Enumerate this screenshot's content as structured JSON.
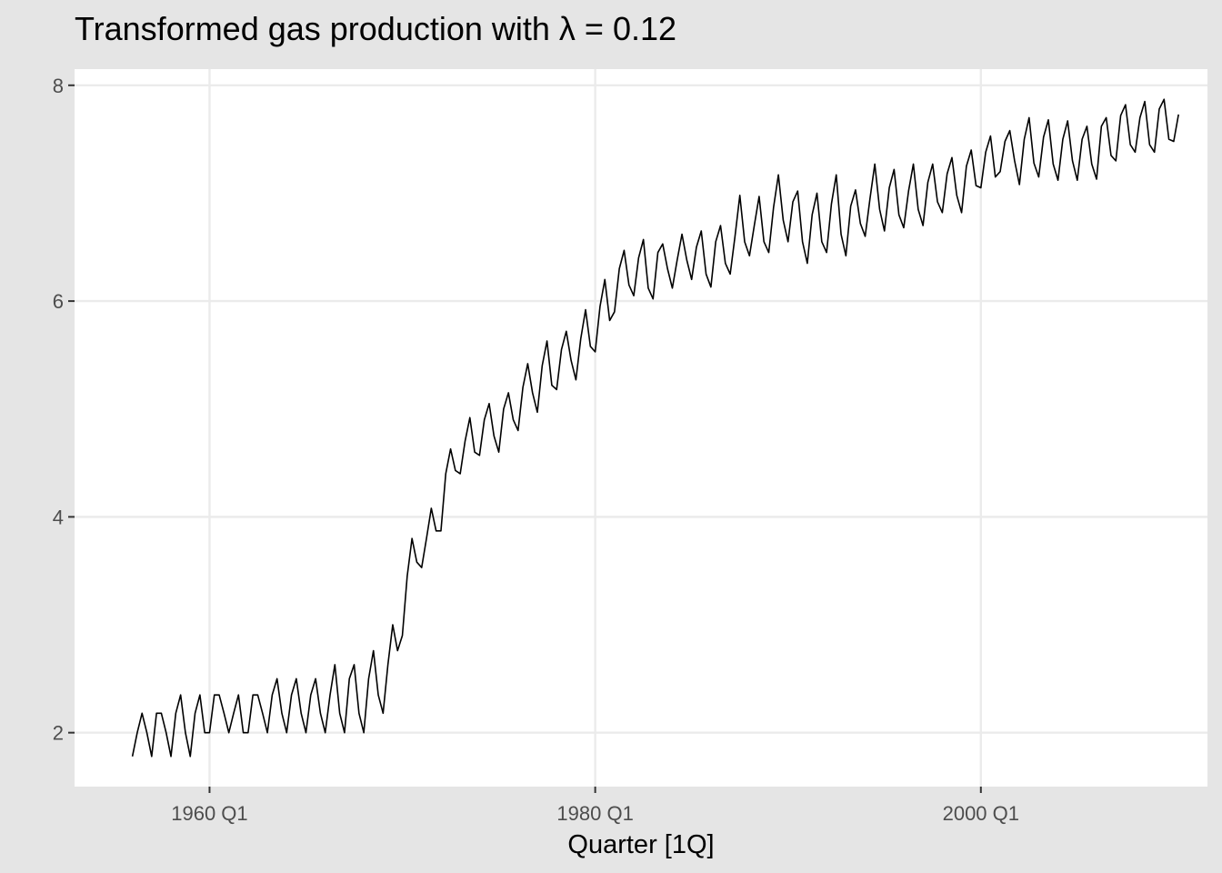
{
  "chart_data": {
    "type": "line",
    "title": "Transformed gas production with λ = 0.12",
    "xlabel": "Quarter [1Q]",
    "ylabel": "",
    "x_ticks": [
      "1960 Q1",
      "1980 Q1",
      "2000 Q1"
    ],
    "y_ticks": [
      "2",
      "4",
      "6",
      "8"
    ],
    "xlim": [
      "1953 Q1",
      "2011 Q4"
    ],
    "ylim": [
      1.5,
      8.15
    ],
    "grid": true,
    "legend": "none",
    "series": [
      {
        "start": "1956 Q1",
        "frequency": "quarterly",
        "color": "#000000",
        "values": [
          1.78,
          2.0,
          2.18,
          2.0,
          1.78,
          2.18,
          2.18,
          2.0,
          1.78,
          2.18,
          2.35,
          2.0,
          1.78,
          2.18,
          2.35,
          2.0,
          2.0,
          2.35,
          2.35,
          2.18,
          2.0,
          2.18,
          2.35,
          2.0,
          2.0,
          2.35,
          2.35,
          2.18,
          2.0,
          2.35,
          2.5,
          2.18,
          2.0,
          2.35,
          2.5,
          2.18,
          2.0,
          2.35,
          2.5,
          2.18,
          2.0,
          2.35,
          2.63,
          2.18,
          2.0,
          2.5,
          2.63,
          2.18,
          2.0,
          2.5,
          2.76,
          2.35,
          2.18,
          2.63,
          3.0,
          2.76,
          2.9,
          3.45,
          3.8,
          3.58,
          3.53,
          3.8,
          4.08,
          3.87,
          3.87,
          4.4,
          4.63,
          4.43,
          4.4,
          4.7,
          4.92,
          4.6,
          4.57,
          4.9,
          5.05,
          4.75,
          4.6,
          5.0,
          5.15,
          4.9,
          4.8,
          5.2,
          5.42,
          5.15,
          4.97,
          5.4,
          5.63,
          5.22,
          5.18,
          5.55,
          5.72,
          5.45,
          5.27,
          5.65,
          5.92,
          5.58,
          5.53,
          5.95,
          6.2,
          5.82,
          5.9,
          6.3,
          6.47,
          6.15,
          6.05,
          6.4,
          6.57,
          6.12,
          6.02,
          6.45,
          6.53,
          6.3,
          6.12,
          6.38,
          6.62,
          6.38,
          6.2,
          6.5,
          6.65,
          6.25,
          6.13,
          6.55,
          6.7,
          6.35,
          6.25,
          6.6,
          6.98,
          6.55,
          6.42,
          6.7,
          6.97,
          6.55,
          6.45,
          6.87,
          7.17,
          6.75,
          6.55,
          6.92,
          7.02,
          6.55,
          6.35,
          6.8,
          7.0,
          6.55,
          6.45,
          6.9,
          7.17,
          6.62,
          6.42,
          6.88,
          7.03,
          6.72,
          6.6,
          6.95,
          7.27,
          6.85,
          6.65,
          7.05,
          7.22,
          6.8,
          6.68,
          7.02,
          7.27,
          6.85,
          6.7,
          7.1,
          7.27,
          6.92,
          6.82,
          7.18,
          7.33,
          6.98,
          6.82,
          7.25,
          7.4,
          7.07,
          7.05,
          7.38,
          7.53,
          7.15,
          7.2,
          7.48,
          7.58,
          7.3,
          7.08,
          7.5,
          7.7,
          7.28,
          7.15,
          7.52,
          7.68,
          7.27,
          7.12,
          7.5,
          7.67,
          7.3,
          7.12,
          7.5,
          7.62,
          7.27,
          7.13,
          7.62,
          7.7,
          7.35,
          7.3,
          7.72,
          7.82,
          7.45,
          7.38,
          7.7,
          7.85,
          7.45,
          7.38,
          7.78,
          7.87,
          7.5,
          7.48,
          7.73
        ]
      }
    ]
  }
}
